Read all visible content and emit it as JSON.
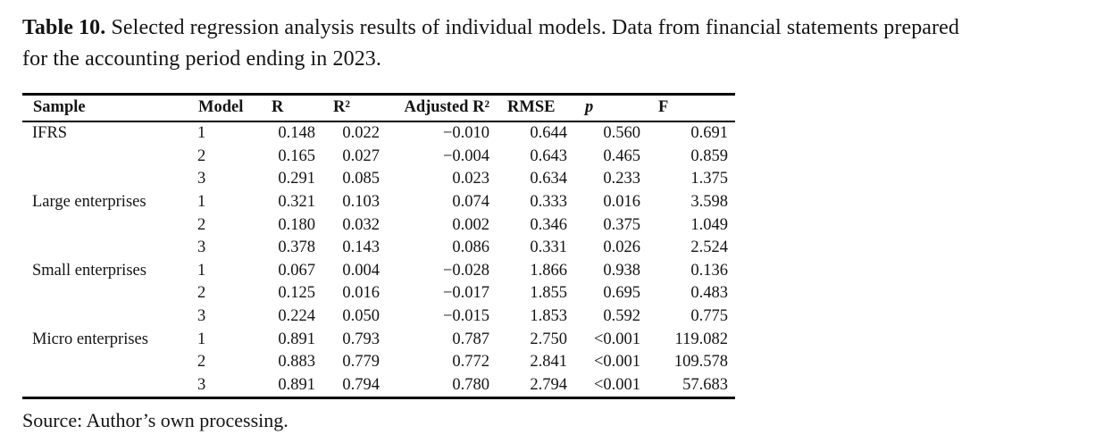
{
  "caption": {
    "label": "Table 10.",
    "line1": " Selected regression analysis results of individual models. Data from financial statements prepared",
    "line2": "for the accounting period ending in 2023."
  },
  "table": {
    "columns": [
      "Sample",
      "Model",
      "R",
      "R²",
      "Adjusted R²",
      "RMSE",
      "p",
      "F"
    ],
    "rows": [
      [
        "IFRS",
        "1",
        "0.148",
        "0.022",
        "−0.010",
        "0.644",
        "0.560",
        "0.691"
      ],
      [
        "",
        "2",
        "0.165",
        "0.027",
        "−0.004",
        "0.643",
        "0.465",
        "0.859"
      ],
      [
        "",
        "3",
        "0.291",
        "0.085",
        "0.023",
        "0.634",
        "0.233",
        "1.375"
      ],
      [
        "Large enterprises",
        "1",
        "0.321",
        "0.103",
        "0.074",
        "0.333",
        "0.016",
        "3.598"
      ],
      [
        "",
        "2",
        "0.180",
        "0.032",
        "0.002",
        "0.346",
        "0.375",
        "1.049"
      ],
      [
        "",
        "3",
        "0.378",
        "0.143",
        "0.086",
        "0.331",
        "0.026",
        "2.524"
      ],
      [
        "Small enterprises",
        "1",
        "0.067",
        "0.004",
        "−0.028",
        "1.866",
        "0.938",
        "0.136"
      ],
      [
        "",
        "2",
        "0.125",
        "0.016",
        "−0.017",
        "1.855",
        "0.695",
        "0.483"
      ],
      [
        "",
        "3",
        "0.224",
        "0.050",
        "−0.015",
        "1.853",
        "0.592",
        "0.775"
      ],
      [
        "Micro enterprises",
        "1",
        "0.891",
        "0.793",
        "0.787",
        "2.750",
        "<0.001",
        "119.082"
      ],
      [
        "",
        "2",
        "0.883",
        "0.779",
        "0.772",
        "2.841",
        "<0.001",
        "109.578"
      ],
      [
        "",
        "3",
        "0.891",
        "0.794",
        "0.780",
        "2.794",
        "<0.001",
        "57.683"
      ]
    ]
  },
  "source_note": "Source: Author’s own processing.",
  "colors": {
    "text": "#141414",
    "rule": "#000000",
    "background": "#ffffff"
  }
}
